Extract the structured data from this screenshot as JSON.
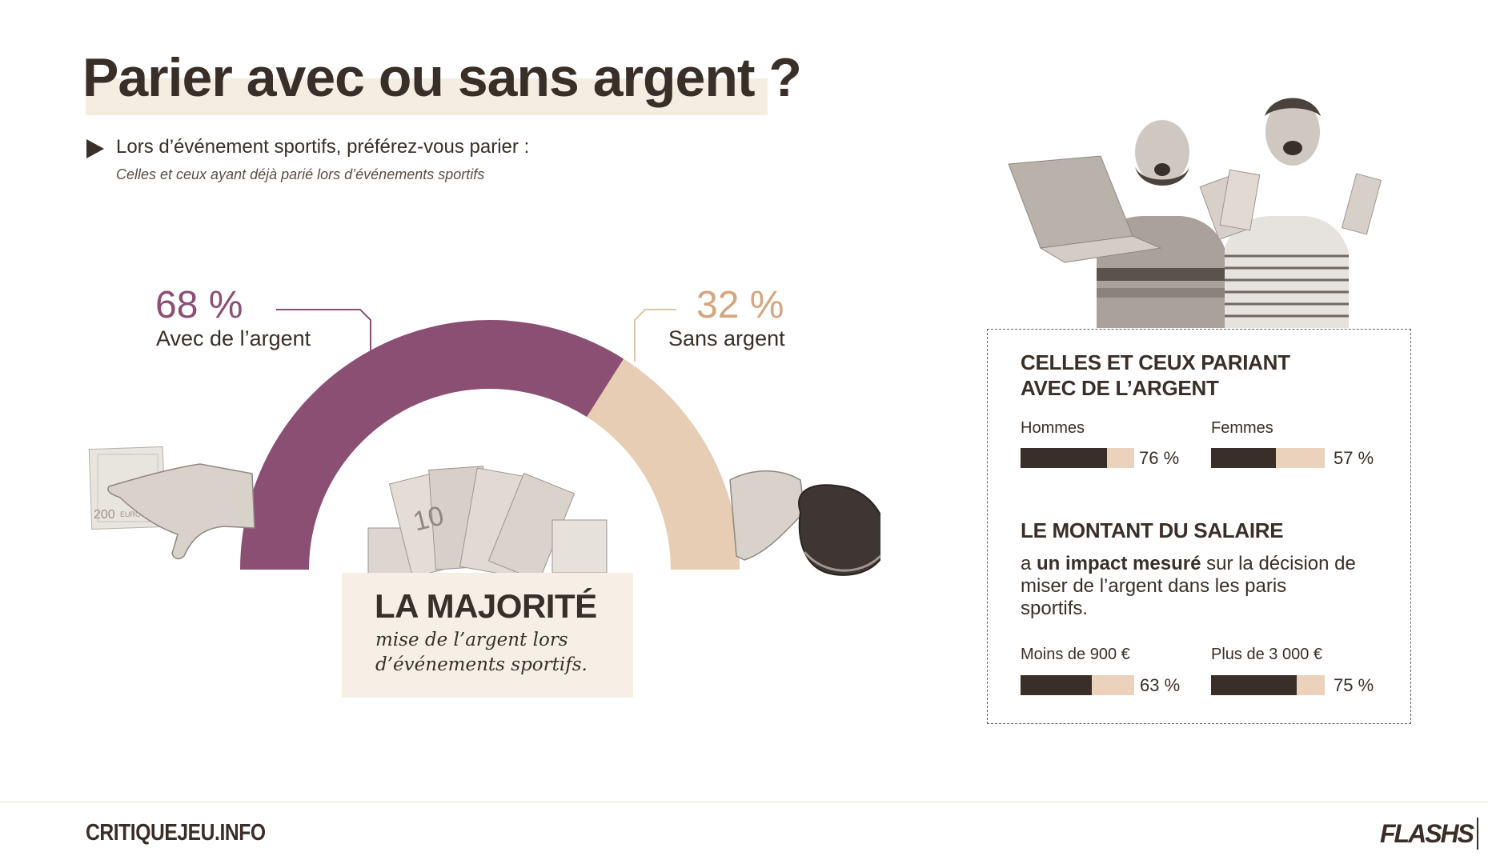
{
  "title": "Parier avec ou sans argent ?",
  "question": "Lors d’événement sportifs, préférez-vous parier :",
  "question_sub": "Celles et ceux ayant déjà parié lors d’événements sportifs",
  "chart_data": [
    {
      "type": "pie",
      "subtype": "semi-donut",
      "slices": [
        {
          "label": "Avec de l’argent",
          "value": 68,
          "display": "68 %",
          "color": "#8b4f74"
        },
        {
          "label": "Sans argent",
          "value": 32,
          "display": "32 %",
          "color": "#e6cdb3"
        }
      ]
    },
    {
      "type": "bar",
      "title": "CELLES ET CEUX PARIANT AVEC DE L’ARGENT",
      "categories": [
        "Hommes",
        "Femmes"
      ],
      "values": [
        76,
        57
      ],
      "labels": [
        "76 %",
        "57 %"
      ],
      "ylim": [
        0,
        100
      ]
    },
    {
      "type": "bar",
      "title": "LE MONTANT DU SALAIRE",
      "categories": [
        "Moins de 900 €",
        "Plus de 3 000 €"
      ],
      "values": [
        63,
        75
      ],
      "labels": [
        "63 %",
        "75 %"
      ],
      "ylim": [
        0,
        100
      ]
    }
  ],
  "majority": {
    "title": "LA MAJORITÉ",
    "text": "mise de l’argent lors d’événements sportifs."
  },
  "panel": {
    "heading1_line1": "CELLES ET CEUX PARIANT",
    "heading1_line2": "AVEC DE L’ARGENT",
    "heading2": "LE MONTANT DU SALAIRE",
    "text_pre": "a ",
    "text_bold": "un impact mesuré",
    "text_post": " sur la décision de miser de l’argent dans les paris sportifs."
  },
  "footer": {
    "site": "CRITIQUEJEU.INFO",
    "brand": "FLASHS"
  },
  "colors": {
    "accent_purple": "#8b4f74",
    "accent_beige": "#e6cdb3",
    "dark": "#3a2e28"
  },
  "icons": [
    "play-arrow-icon",
    "hand-with-banknote-icon",
    "hand-with-purse-icon",
    "banknotes-fan-icon",
    "cheering-men-with-laptop-and-cash-icon"
  ]
}
